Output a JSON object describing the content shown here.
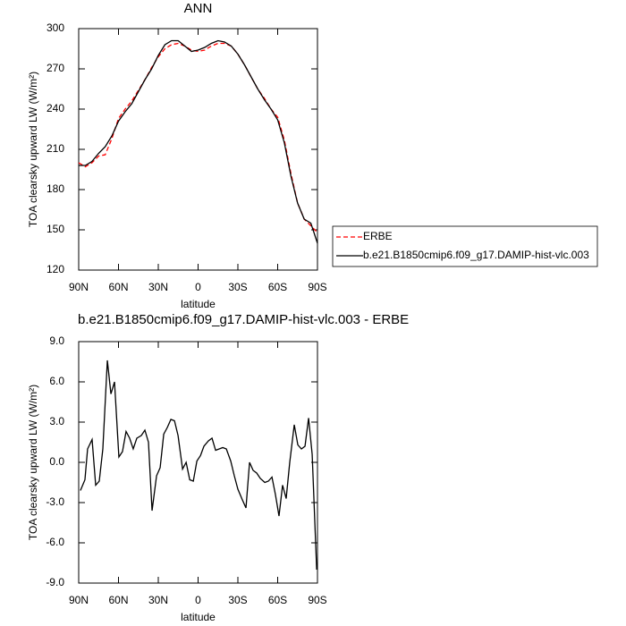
{
  "chart_data": [
    {
      "type": "line",
      "title": "ANN",
      "xlabel": "latitude",
      "ylabel": "TOA clearsky upward LW (W/m²)",
      "x": [
        90,
        85,
        80,
        75,
        70,
        65,
        60,
        55,
        50,
        45,
        40,
        35,
        30,
        25,
        20,
        15,
        10,
        5,
        0,
        -5,
        -10,
        -15,
        -20,
        -25,
        -30,
        -35,
        -40,
        -45,
        -50,
        -55,
        -60,
        -65,
        -70,
        -75,
        -80,
        -85,
        -90
      ],
      "series": [
        {
          "name": "ERBE",
          "color": "#ff0000",
          "dashed": true,
          "values": [
            200,
            197,
            200,
            205,
            206,
            218,
            233,
            240,
            246,
            254,
            262,
            271,
            279,
            285,
            288,
            289,
            287,
            284,
            283,
            284,
            287,
            289,
            289,
            287,
            281,
            273,
            264,
            255,
            248,
            240,
            234,
            217,
            192,
            170,
            158,
            153,
            148
          ]
        },
        {
          "name": "b.e21.B1850cmip6.f09_g17.DAMIP-hist-vlc.003",
          "color": "#000000",
          "dashed": false,
          "values": [
            198,
            198,
            201,
            207,
            212,
            220,
            231,
            238,
            244,
            253,
            262,
            270,
            280,
            288,
            291,
            291,
            287,
            283,
            284,
            286,
            289,
            291,
            290,
            287,
            281,
            273,
            264,
            255,
            247,
            240,
            232,
            215,
            190,
            170,
            158,
            155,
            140
          ]
        }
      ],
      "xlim": [
        90,
        -90
      ],
      "xticks": [
        {
          "value": 90,
          "label": "90N"
        },
        {
          "value": 60,
          "label": "60N"
        },
        {
          "value": 30,
          "label": "30N"
        },
        0,
        {
          "value": -30,
          "label": "30S"
        },
        {
          "value": -60,
          "label": "60S"
        },
        {
          "value": -90,
          "label": "90S"
        }
      ],
      "ylim": [
        120,
        300
      ],
      "yticks": [
        120,
        150,
        180,
        210,
        240,
        270,
        300
      ],
      "legend": "right"
    },
    {
      "type": "line",
      "title": "b.e21.B1850cmip6.f09_g17.DAMIP-hist-vlc.003 - ERBE",
      "xlabel": "latitude",
      "ylabel": "TOA clearsky upward LW (W/m²)",
      "color": "#000000",
      "x": [
        88.7,
        85.3,
        83.3,
        79.9,
        77.2,
        74.5,
        71.8,
        68.4,
        65.7,
        63.0,
        59.7,
        57.0,
        54.3,
        51.6,
        48.9,
        46.2,
        42.8,
        40.1,
        37.4,
        34.7,
        31.3,
        28.6,
        25.9,
        23.2,
        20.5,
        17.8,
        15.1,
        11.7,
        9.0,
        6.3,
        3.6,
        0.9,
        -1.8,
        -4.4,
        -7.8,
        -10.5,
        -13.2,
        -15.9,
        -18.6,
        -21.3,
        -24.6,
        -27.3,
        -30.0,
        -33.4,
        -36.1,
        -38.8,
        -41.5,
        -44.2,
        -46.9,
        -50.3,
        -53.0,
        -55.7,
        -58.3,
        -61.0,
        -63.7,
        -66.4,
        -69.1,
        -72.5,
        -75.2,
        -77.9,
        -80.6,
        -83.3,
        -86.0,
        -89.4
      ],
      "values": [
        -2.1,
        -1.3,
        1.0,
        1.7,
        -1.7,
        -1.4,
        1.0,
        7.6,
        5.1,
        6.0,
        0.4,
        0.8,
        2.3,
        1.8,
        1.0,
        1.8,
        2.0,
        2.4,
        1.5,
        -3.6,
        -1.0,
        -0.4,
        2.1,
        2.6,
        3.2,
        3.1,
        2.0,
        -0.5,
        0.0,
        -1.3,
        -1.4,
        0.1,
        0.5,
        1.2,
        1.6,
        1.8,
        0.9,
        1.0,
        1.1,
        1.0,
        0.1,
        -1.0,
        -2.0,
        -2.8,
        -3.4,
        0.0,
        -0.6,
        -0.8,
        -1.2,
        -1.5,
        -1.4,
        -1.1,
        -2.4,
        -4.0,
        -1.7,
        -2.7,
        0.0,
        2.8,
        1.3,
        1.0,
        1.2,
        3.3,
        0.6,
        -8.0
      ],
      "xlim": [
        90,
        -90
      ],
      "xticks": [
        {
          "value": 90,
          "label": "90N"
        },
        {
          "value": 60,
          "label": "60N"
        },
        {
          "value": 30,
          "label": "30N"
        },
        0,
        {
          "value": -30,
          "label": "30S"
        },
        {
          "value": -60,
          "label": "60S"
        },
        {
          "value": -90,
          "label": "90S"
        }
      ],
      "ylim": [
        -9,
        9
      ],
      "yticks": [
        {
          "value": -9,
          "label": "-9.0"
        },
        {
          "value": -6,
          "label": "-6.0"
        },
        {
          "value": -3,
          "label": "-3.0"
        },
        {
          "value": 0,
          "label": "0.0"
        },
        {
          "value": 3,
          "label": "3.0"
        },
        {
          "value": 6,
          "label": "6.0"
        },
        {
          "value": 9,
          "label": "9.0"
        }
      ]
    }
  ]
}
